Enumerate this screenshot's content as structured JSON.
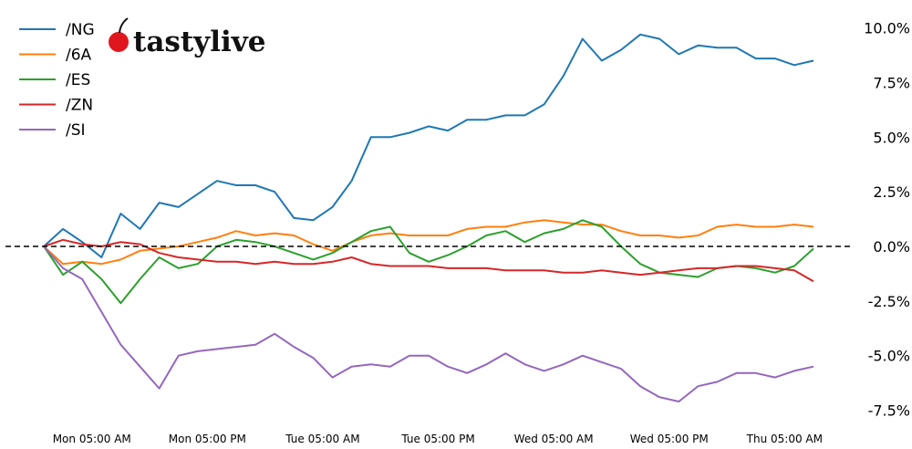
{
  "chart_data": {
    "type": "line",
    "title": "",
    "xlabel": "",
    "ylabel": "",
    "ylim": [
      -8.0,
      11.0
    ],
    "xlim": [
      "Mon 00:00",
      "Thu 08:00"
    ],
    "grid": false,
    "legend_position": "top-left",
    "reference_line": {
      "y": 0,
      "style": "dashed",
      "color": "#000000"
    },
    "y_ticks": [
      {
        "value": 10,
        "label": "10.0%"
      },
      {
        "value": 7.5,
        "label": "7.5%"
      },
      {
        "value": 5,
        "label": "5.0%"
      },
      {
        "value": 2.5,
        "label": "2.5%"
      },
      {
        "value": 0,
        "label": "0.0%"
      },
      {
        "value": -2.5,
        "label": "-2.5%"
      },
      {
        "value": -5,
        "label": "-5.0%"
      },
      {
        "value": -7.5,
        "label": "-7.5%"
      }
    ],
    "x_ticks": [
      {
        "value": "Mon 05:00",
        "label": "Mon 05:00 AM"
      },
      {
        "value": "Mon 17:00",
        "label": "Mon 05:00 PM"
      },
      {
        "value": "Tue 05:00",
        "label": "Tue 05:00 AM"
      },
      {
        "value": "Tue 17:00",
        "label": "Tue 05:00 PM"
      },
      {
        "value": "Wed 05:00",
        "label": "Wed 05:00 AM"
      },
      {
        "value": "Wed 17:00",
        "label": "Wed 05:00 PM"
      },
      {
        "value": "Thu 05:00",
        "label": "Thu 05:00 AM"
      }
    ],
    "x": [
      "Mon 00:00",
      "Mon 02:00",
      "Mon 04:00",
      "Mon 06:00",
      "Mon 08:00",
      "Mon 10:00",
      "Mon 12:00",
      "Mon 14:00",
      "Mon 16:00",
      "Mon 18:00",
      "Mon 20:00",
      "Mon 22:00",
      "Tue 00:00",
      "Tue 02:00",
      "Tue 04:00",
      "Tue 06:00",
      "Tue 08:00",
      "Tue 10:00",
      "Tue 12:00",
      "Tue 14:00",
      "Tue 16:00",
      "Tue 18:00",
      "Tue 20:00",
      "Tue 22:00",
      "Wed 00:00",
      "Wed 02:00",
      "Wed 04:00",
      "Wed 06:00",
      "Wed 08:00",
      "Wed 10:00",
      "Wed 12:00",
      "Wed 14:00",
      "Wed 16:00",
      "Wed 18:00",
      "Wed 20:00",
      "Wed 22:00",
      "Thu 00:00",
      "Thu 02:00",
      "Thu 04:00",
      "Thu 06:00",
      "Thu 08:00"
    ],
    "series": [
      {
        "name": "/NG",
        "color": "#1f77b4",
        "values": [
          0,
          0.8,
          0.2,
          -0.5,
          1.5,
          0.8,
          2.0,
          1.8,
          2.4,
          3.0,
          2.8,
          2.8,
          2.5,
          1.3,
          1.2,
          1.8,
          3.0,
          5.0,
          5.0,
          5.2,
          5.5,
          5.3,
          5.8,
          5.8,
          6.0,
          6.0,
          6.5,
          7.8,
          9.5,
          8.5,
          9.0,
          9.7,
          9.5,
          8.8,
          9.2,
          9.1,
          9.1,
          8.6,
          8.6,
          8.3,
          8.5
        ]
      },
      {
        "name": "/6A",
        "color": "#ff7f0e",
        "values": [
          0,
          -0.8,
          -0.7,
          -0.8,
          -0.6,
          -0.2,
          -0.1,
          0,
          0.2,
          0.4,
          0.7,
          0.5,
          0.6,
          0.5,
          0.1,
          -0.2,
          0.2,
          0.5,
          0.6,
          0.5,
          0.5,
          0.5,
          0.8,
          0.9,
          0.9,
          1.1,
          1.2,
          1.1,
          1.0,
          1.0,
          0.7,
          0.5,
          0.5,
          0.4,
          0.5,
          0.9,
          1.0,
          0.9,
          0.9,
          1.0,
          0.9
        ]
      },
      {
        "name": "/ES",
        "color": "#2ca02c",
        "values": [
          0,
          -1.3,
          -0.7,
          -1.5,
          -2.6,
          -1.5,
          -0.5,
          -1.0,
          -0.8,
          0,
          0.3,
          0.2,
          0,
          -0.3,
          -0.6,
          -0.3,
          0.2,
          0.7,
          0.9,
          -0.3,
          -0.7,
          -0.4,
          0,
          0.5,
          0.7,
          0.2,
          0.6,
          0.8,
          1.2,
          0.9,
          0,
          -0.8,
          -1.2,
          -1.3,
          -1.4,
          -1.0,
          -0.9,
          -1.0,
          -1.2,
          -0.9,
          -0.1
        ]
      },
      {
        "name": "/ZN",
        "color": "#d62728",
        "values": [
          0,
          0.3,
          0.1,
          0,
          0.2,
          0.1,
          -0.3,
          -0.5,
          -0.6,
          -0.7,
          -0.7,
          -0.8,
          -0.7,
          -0.8,
          -0.8,
          -0.7,
          -0.5,
          -0.8,
          -0.9,
          -0.9,
          -0.9,
          -1.0,
          -1.0,
          -1.0,
          -1.1,
          -1.1,
          -1.1,
          -1.2,
          -1.2,
          -1.1,
          -1.2,
          -1.3,
          -1.2,
          -1.1,
          -1.0,
          -1.0,
          -0.9,
          -0.9,
          -1.0,
          -1.1,
          -1.6
        ]
      },
      {
        "name": "/SI",
        "color": "#9467bd",
        "values": [
          0,
          -1.0,
          -1.5,
          -3.0,
          -4.5,
          -5.5,
          -6.5,
          -5.0,
          -4.8,
          -4.7,
          -4.6,
          -4.5,
          -4.0,
          -4.6,
          -5.1,
          -6.0,
          -5.5,
          -5.4,
          -5.5,
          -5.0,
          -5.0,
          -5.5,
          -5.8,
          -5.4,
          -4.9,
          -5.4,
          -5.7,
          -5.4,
          -5.0,
          -5.3,
          -5.6,
          -6.4,
          -6.9,
          -7.1,
          -6.4,
          -6.2,
          -5.8,
          -5.8,
          -6.0,
          -5.7,
          -5.5
        ]
      }
    ]
  },
  "logo": {
    "text": "tastylive"
  }
}
